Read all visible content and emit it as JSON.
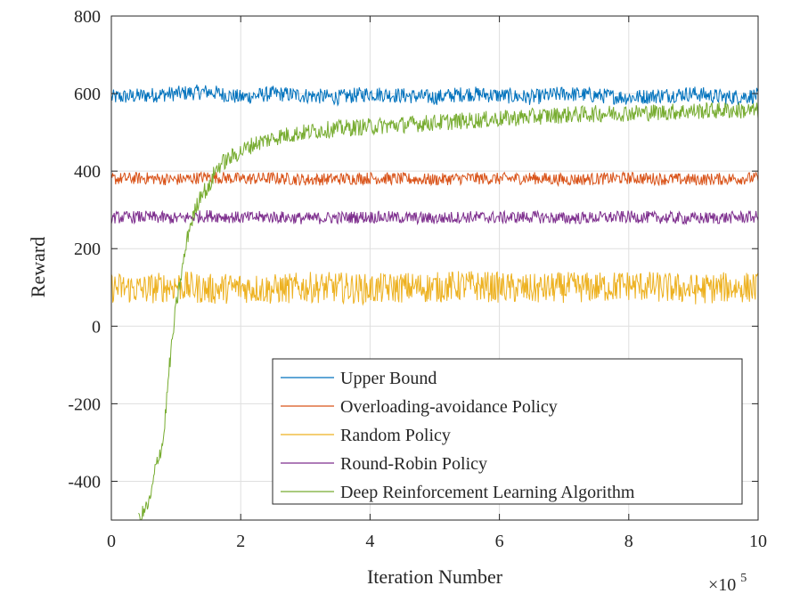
{
  "chart_data": {
    "type": "line",
    "xlabel": "Iteration Number",
    "ylabel": "Reward",
    "x_multiplier_label": "×10",
    "x_multiplier_exponent": "5",
    "xlim": [
      0,
      10
    ],
    "ylim": [
      -500,
      800
    ],
    "x_ticks": [
      0,
      2,
      4,
      6,
      8,
      10
    ],
    "x_tick_labels": [
      "0",
      "2",
      "4",
      "6",
      "8",
      "10"
    ],
    "y_ticks": [
      -400,
      -200,
      0,
      200,
      400,
      600,
      800
    ],
    "y_tick_labels": [
      "-400",
      "-200",
      "0",
      "200",
      "400",
      "600",
      "800"
    ],
    "grid": true,
    "legend_position": "lower-right",
    "series": [
      {
        "name": "Upper Bound",
        "color": "#0072BD",
        "x": [
          0,
          0.5,
          1,
          1.5,
          2,
          2.5,
          3,
          3.5,
          4,
          4.5,
          5,
          5.5,
          6,
          6.5,
          7,
          7.5,
          8,
          8.5,
          9,
          9.5,
          10
        ],
        "y": [
          590,
          595,
          600,
          605,
          590,
          600,
          595,
          590,
          600,
          595,
          590,
          600,
          595,
          590,
          600,
          595,
          590,
          595,
          600,
          590,
          595
        ],
        "noise_amplitude": 20
      },
      {
        "name": "Overloading-avoidance Policy",
        "color": "#D95319",
        "x": [
          0,
          0.5,
          1,
          1.5,
          2,
          2.5,
          3,
          3.5,
          4,
          4.5,
          5,
          5.5,
          6,
          6.5,
          7,
          7.5,
          8,
          8.5,
          9,
          9.5,
          10
        ],
        "y": [
          380,
          382,
          378,
          385,
          380,
          382,
          378,
          380,
          382,
          380,
          378,
          382,
          380,
          382,
          378,
          380,
          382,
          380,
          378,
          380,
          382
        ],
        "noise_amplitude": 16
      },
      {
        "name": "Random Policy",
        "color": "#EDB120",
        "x": [
          0,
          0.5,
          1,
          1.5,
          2,
          2.5,
          3,
          3.5,
          4,
          4.5,
          5,
          5.5,
          6,
          6.5,
          7,
          7.5,
          8,
          8.5,
          9,
          9.5,
          10
        ],
        "y": [
          100,
          95,
          105,
          95,
          100,
          95,
          100,
          100,
          95,
          100,
          100,
          105,
          100,
          95,
          100,
          100,
          105,
          100,
          95,
          100,
          100
        ],
        "noise_amplitude": 40
      },
      {
        "name": "Round-Robin Policy",
        "color": "#7E2F8E",
        "x": [
          0,
          0.5,
          1,
          1.5,
          2,
          2.5,
          3,
          3.5,
          4,
          4.5,
          5,
          5.5,
          6,
          6.5,
          7,
          7.5,
          8,
          8.5,
          9,
          9.5,
          10
        ],
        "y": [
          280,
          282,
          278,
          285,
          280,
          282,
          278,
          280,
          282,
          280,
          278,
          282,
          280,
          282,
          278,
          280,
          282,
          280,
          278,
          280,
          282
        ],
        "noise_amplitude": 16
      },
      {
        "name": "Deep Reinforcement Learning Algorithm",
        "color": "#77AC30",
        "x": [
          0.42,
          0.5,
          0.6,
          0.7,
          0.8,
          0.9,
          1.0,
          1.1,
          1.2,
          1.3,
          1.4,
          1.5,
          1.6,
          1.7,
          1.8,
          1.9,
          2.0,
          2.1,
          2.2,
          2.4,
          2.6,
          2.8,
          3.0,
          3.2,
          3.5,
          4.0,
          4.5,
          5.0,
          5.5,
          6.0,
          6.5,
          7.0,
          7.5,
          8.0,
          8.5,
          9.0,
          9.5,
          10.0
        ],
        "y": [
          -500,
          -480,
          -450,
          -350,
          -300,
          -100,
          50,
          150,
          250,
          300,
          350,
          350,
          400,
          420,
          430,
          440,
          450,
          460,
          470,
          480,
          490,
          495,
          500,
          505,
          510,
          515,
          520,
          525,
          530,
          535,
          540,
          545,
          548,
          550,
          552,
          555,
          557,
          555
        ],
        "noise_amplitude": 22
      }
    ]
  }
}
